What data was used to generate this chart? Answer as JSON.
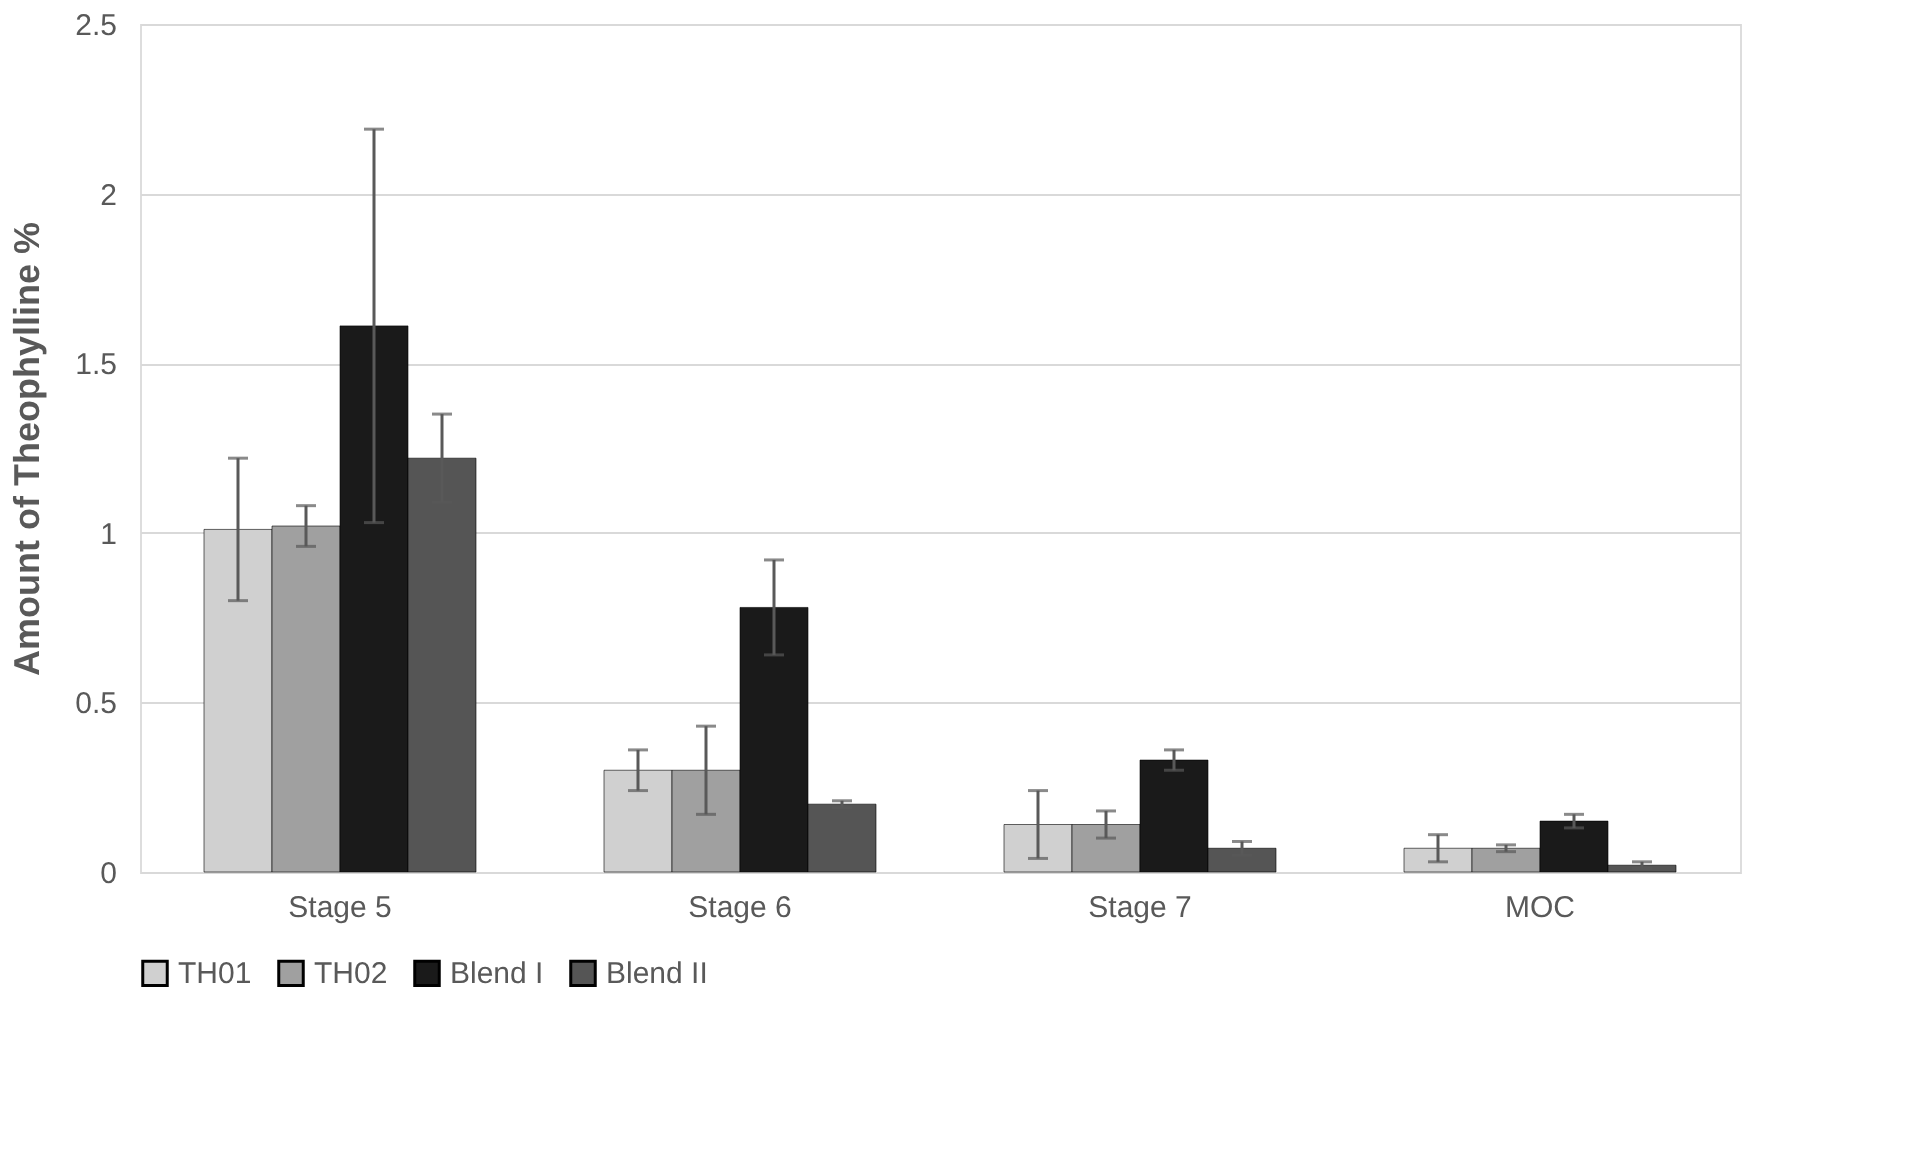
{
  "chart_data": {
    "type": "bar",
    "ylabel": "Amount of Theophylline %",
    "categories": [
      "Stage 5",
      "Stage 6",
      "Stage 7",
      "MOC"
    ],
    "series": [
      {
        "name": "TH01",
        "color": "#d0d0d0",
        "values": [
          1.01,
          0.3,
          0.14,
          0.07
        ],
        "errors": [
          0.21,
          0.06,
          0.1,
          0.04
        ]
      },
      {
        "name": "TH02",
        "color": "#a0a0a0",
        "values": [
          1.02,
          0.3,
          0.14,
          0.07
        ],
        "errors": [
          0.06,
          0.13,
          0.04,
          0.01
        ]
      },
      {
        "name": "Blend I",
        "color": "#1a1a1a",
        "values": [
          1.61,
          0.78,
          0.33,
          0.15
        ],
        "errors": [
          0.58,
          0.14,
          0.03,
          0.02
        ]
      },
      {
        "name": "Blend II",
        "color": "#555555",
        "values": [
          1.22,
          0.2,
          0.07,
          0.02
        ],
        "errors": [
          0.13,
          0.01,
          0.02,
          0.01
        ]
      }
    ],
    "ylim": [
      0,
      2.5
    ],
    "yticks": [
      0,
      0.5,
      1,
      1.5,
      2,
      2.5
    ],
    "grid": "y",
    "legend": "bottom"
  }
}
